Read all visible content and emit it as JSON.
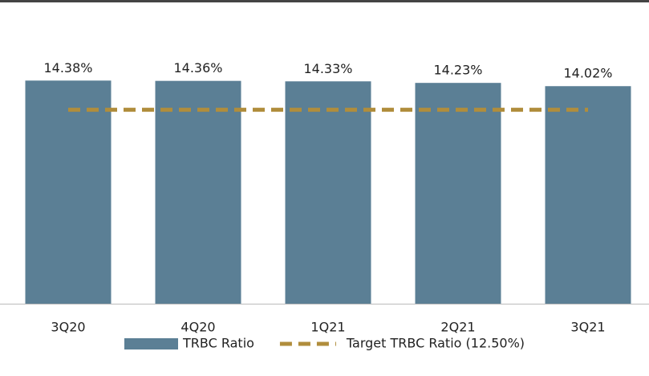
{
  "chart_data": {
    "type": "bar",
    "categories": [
      "3Q20",
      "4Q20",
      "1Q21",
      "2Q21",
      "3Q21"
    ],
    "series": [
      {
        "name": "TRBC Ratio",
        "type": "bar",
        "color": "#5b7f95",
        "values": [
          14.38,
          14.36,
          14.33,
          14.23,
          14.02
        ],
        "value_labels": [
          "14.38%",
          "14.36%",
          "14.33%",
          "14.23%",
          "14.02%"
        ]
      },
      {
        "name": "Target TRBC Ratio (12.50%)",
        "type": "line",
        "dashed": true,
        "color": "#b08d3c",
        "values": [
          12.5,
          12.5,
          12.5,
          12.5,
          12.5
        ]
      }
    ],
    "ylim": [
      0,
      16
    ],
    "legend": "bottom"
  }
}
